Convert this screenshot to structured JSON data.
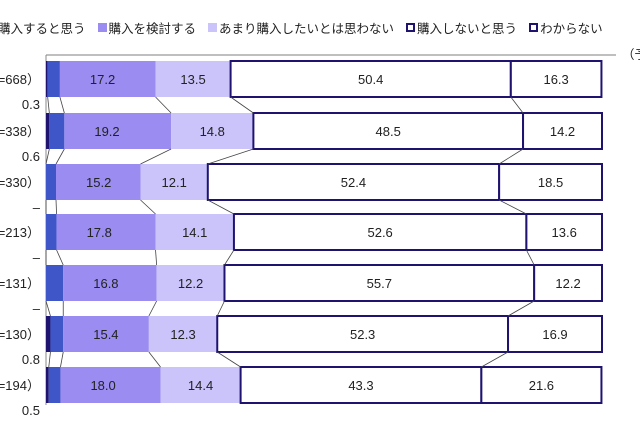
{
  "chart_data": {
    "type": "bar",
    "orientation": "horizontal",
    "stacked": true,
    "unit_label": "（予",
    "categories": [
      "=668）",
      "=338）",
      "=330）",
      "=213）",
      "=131）",
      "=130）",
      "=194）"
    ],
    "legend_position": "top",
    "series": [
      {
        "name": "",
        "color": "#1e1470",
        "values": [
          0.3,
          0.6,
          0,
          0,
          0,
          0.8,
          0.5
        ],
        "labels": [
          "0.3",
          "0.6",
          "–",
          "–",
          "–",
          "0.8",
          "0.5"
        ]
      },
      {
        "name": "購入すると思う",
        "color": "#3f56c8",
        "values": [
          2.2,
          2.7,
          1.8,
          1.9,
          3.1,
          2.3,
          2.1
        ],
        "labels": [
          "2.2",
          "2.7",
          "1.8",
          "1.9",
          "3.1",
          "2.3",
          "2.1"
        ]
      },
      {
        "name": "購入を検討する",
        "color": "#9a8cf0",
        "values": [
          17.2,
          19.2,
          15.2,
          17.8,
          16.8,
          15.4,
          18.0
        ],
        "labels": [
          "17.2",
          "19.2",
          "15.2",
          "17.8",
          "16.8",
          "15.4",
          "18.0"
        ]
      },
      {
        "name": "あまり購入したいとは思わない",
        "color": "#cbc4fa",
        "values": [
          13.5,
          14.8,
          12.1,
          14.1,
          12.2,
          12.3,
          14.4
        ],
        "labels": [
          "13.5",
          "14.8",
          "12.1",
          "14.1",
          "12.2",
          "12.3",
          "14.4"
        ]
      },
      {
        "name": "購入しないと思う",
        "color": "#ffffff",
        "values": [
          50.4,
          48.5,
          52.4,
          52.6,
          55.7,
          52.3,
          43.3
        ],
        "labels": [
          "50.4",
          "48.5",
          "52.4",
          "52.6",
          "55.7",
          "52.3",
          "43.3"
        ]
      },
      {
        "name": "わからない",
        "color": "#ffffff",
        "values": [
          16.3,
          14.2,
          18.5,
          13.6,
          12.2,
          16.9,
          21.6
        ],
        "labels": [
          "16.3",
          "14.2",
          "18.5",
          "13.6",
          "12.2",
          "16.9",
          "21.6"
        ]
      }
    ],
    "xlim": [
      0,
      100
    ],
    "border_color": "#1e1470"
  }
}
